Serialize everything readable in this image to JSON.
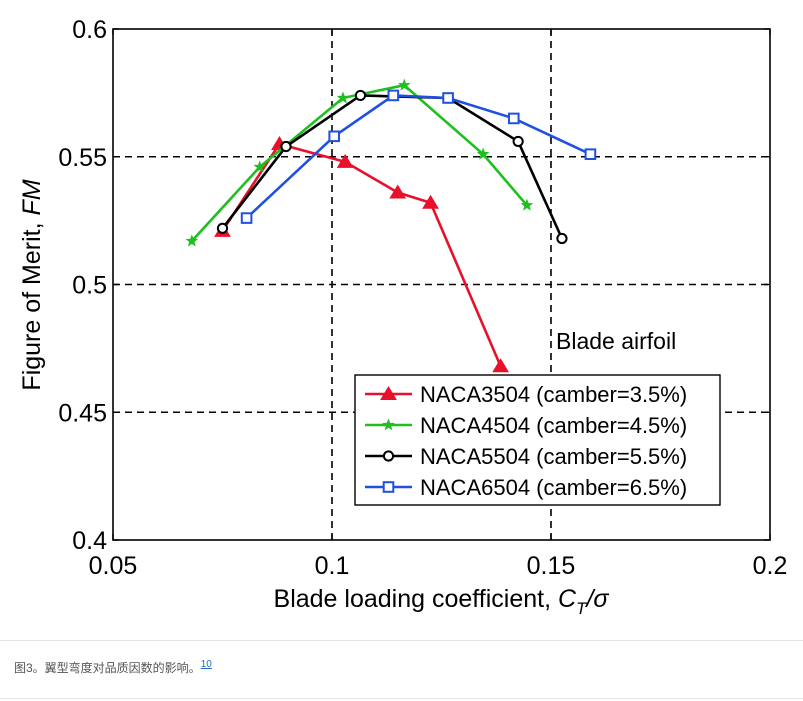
{
  "chart_data": {
    "type": "line",
    "title": "",
    "xlabel": "Blade loading coefficient, ",
    "xlabel_symbol": "C",
    "xlabel_sub": "T",
    "xlabel_tail": "/σ",
    "ylabel": "Figure of Merit, ",
    "ylabel_symbol": "FM",
    "xlim": [
      0.05,
      0.2
    ],
    "ylim": [
      0.4,
      0.6
    ],
    "xticks": [
      0.05,
      0.1,
      0.15,
      0.2
    ],
    "xtick_labels": [
      "0.05",
      "0.1",
      "0.15",
      "0.2"
    ],
    "yticks": [
      0.4,
      0.45,
      0.5,
      0.55,
      0.6
    ],
    "ytick_labels": [
      "0.4",
      "0.45",
      "0.5",
      "0.55",
      "0.6"
    ],
    "grid": "dashed",
    "legend_title": "Blade airfoil",
    "legend_position": "lower-right",
    "series": [
      {
        "name": "NACA3504 (camber=3.5%)",
        "color": "#e8102a",
        "marker": "triangle",
        "x": [
          0.075,
          0.088,
          0.103,
          0.115,
          0.1225,
          0.1385
        ],
        "y": [
          0.521,
          0.555,
          0.548,
          0.536,
          0.532,
          0.468
        ]
      },
      {
        "name": "NACA4504 (camber=4.5%)",
        "color": "#1fbf1f",
        "marker": "star",
        "x": [
          0.068,
          0.0835,
          0.1025,
          0.1165,
          0.1345,
          0.1445
        ],
        "y": [
          0.517,
          0.546,
          0.573,
          0.578,
          0.551,
          0.531
        ]
      },
      {
        "name": "NACA5504 (camber=5.5%)",
        "color": "#000000",
        "marker": "circle",
        "x": [
          0.075,
          0.0895,
          0.1065,
          0.1265,
          0.1425,
          0.1525
        ],
        "y": [
          0.522,
          0.554,
          0.574,
          0.573,
          0.556,
          0.518
        ]
      },
      {
        "name": "NACA6504 (camber=6.5%)",
        "color": "#2050e0",
        "marker": "square",
        "x": [
          0.0805,
          0.1005,
          0.114,
          0.1265,
          0.1415,
          0.159
        ],
        "y": [
          0.526,
          0.558,
          0.574,
          0.573,
          0.565,
          0.551
        ]
      }
    ]
  },
  "caption": {
    "text": "图3。翼型弯度对品质因数的影响。",
    "ref": "10"
  }
}
